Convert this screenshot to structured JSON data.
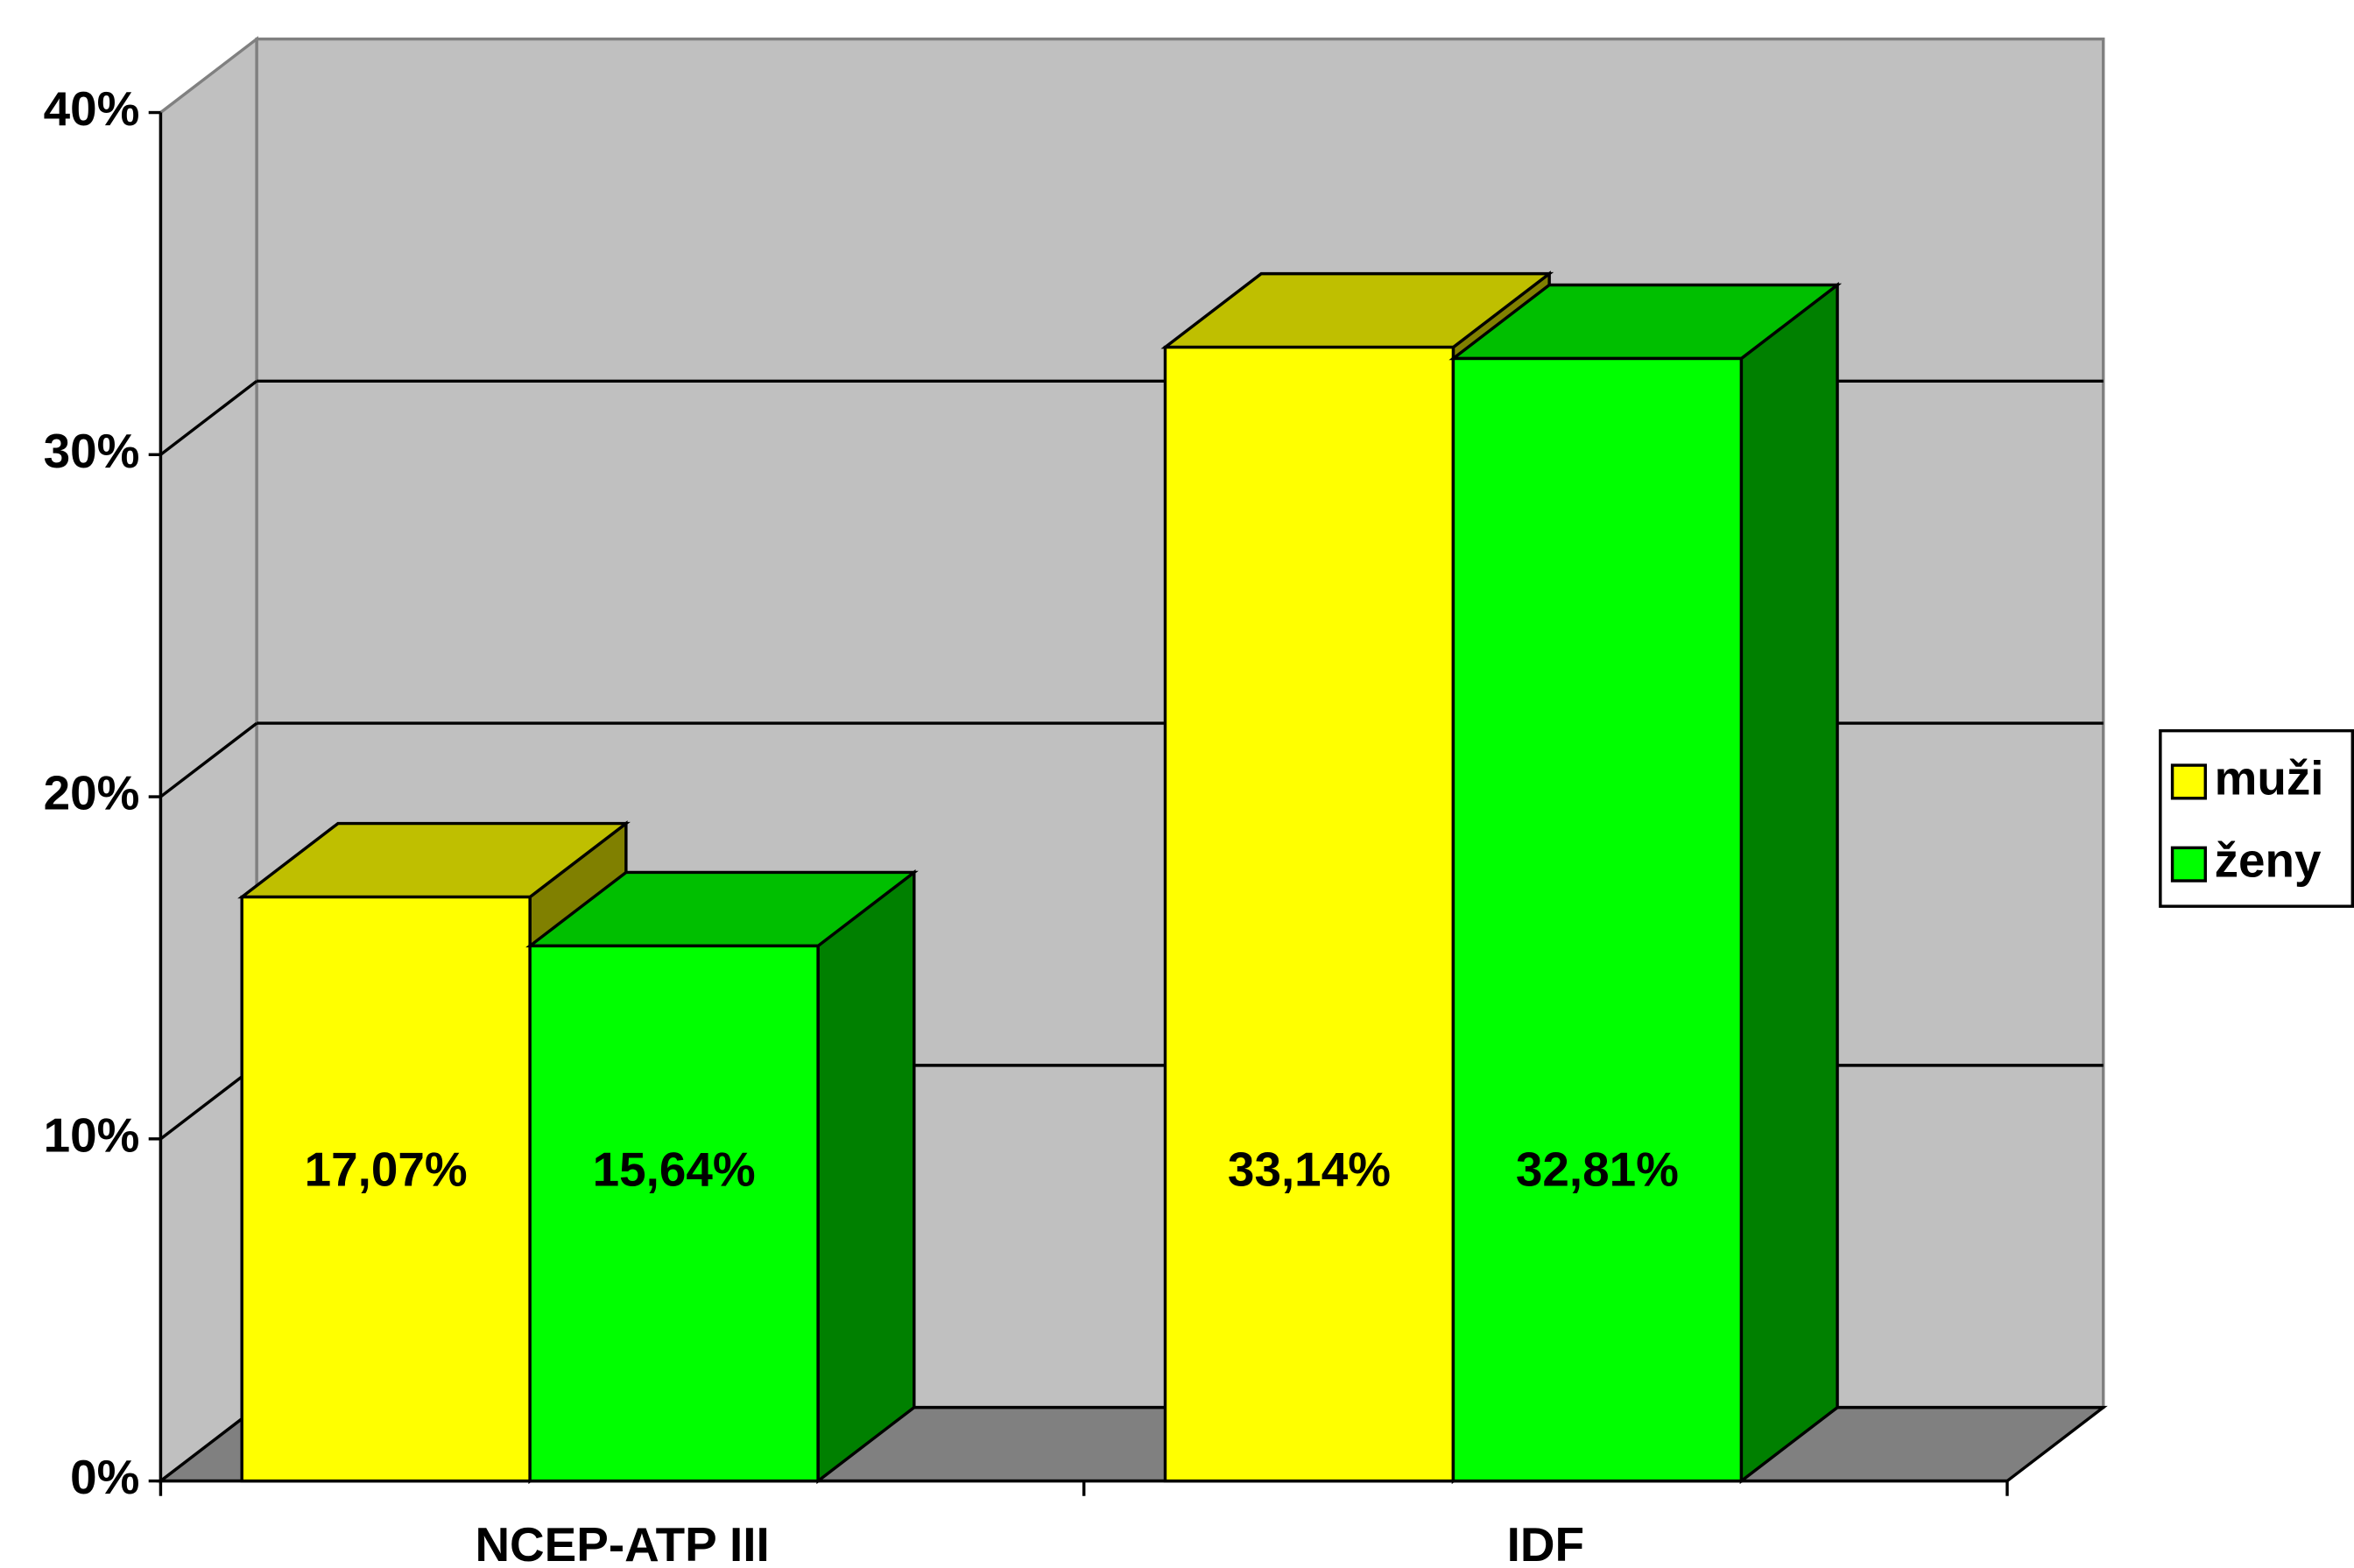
{
  "chart_data": {
    "type": "bar3d",
    "categories": [
      "NCEP-ATP III",
      "IDF"
    ],
    "series": [
      {
        "name": "muži",
        "color": "#ffff00",
        "values": [
          17.07,
          33.14
        ],
        "value_labels": [
          "17,07%",
          "33,14%"
        ]
      },
      {
        "name": "ženy",
        "color": "#00ff00",
        "values": [
          15.64,
          32.81
        ],
        "value_labels": [
          "15,64%",
          "32,81%"
        ]
      }
    ],
    "ylim": [
      0,
      40
    ],
    "yticks": [
      {
        "value": 0,
        "label": "0%"
      },
      {
        "value": 10,
        "label": "10%"
      },
      {
        "value": 20,
        "label": "20%"
      },
      {
        "value": 30,
        "label": "30%"
      },
      {
        "value": 40,
        "label": "40%"
      }
    ],
    "grid": true,
    "legend": "right"
  }
}
